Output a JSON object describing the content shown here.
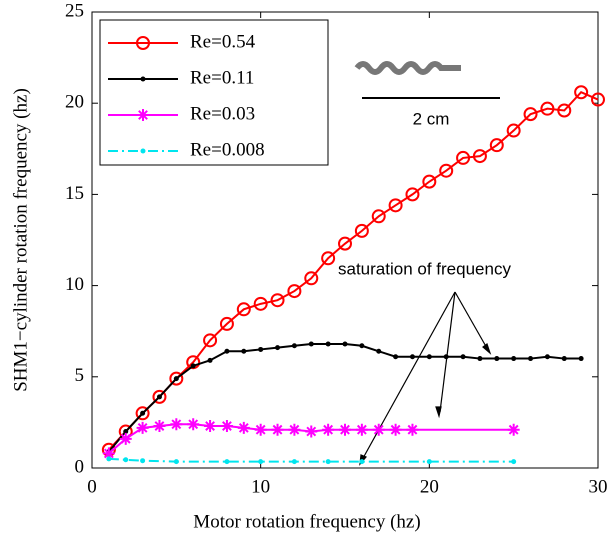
{
  "chart_data": {
    "type": "line",
    "xlabel": "Motor rotation frequency (hz)",
    "ylabel": "SHM1−cylinder rotation frequency (hz)",
    "xlim": [
      0,
      30
    ],
    "ylim": [
      0,
      25
    ],
    "xticks": [
      0,
      10,
      20,
      30
    ],
    "yticks": [
      0,
      5,
      10,
      15,
      20,
      25
    ],
    "legend": "upper left",
    "annotation": "saturation of frequency",
    "scale_label": "2 cm",
    "series": [
      {
        "name": "Re=0.54",
        "color": "#ff0000",
        "marker": "circle",
        "linestyle": "solid",
        "x": [
          1,
          2,
          3,
          4,
          5,
          6,
          7,
          8,
          9,
          10,
          11,
          12,
          13,
          14,
          15,
          16,
          17,
          18,
          19,
          20,
          21,
          22,
          23,
          24,
          25,
          26,
          27,
          28,
          29,
          30
        ],
        "values": [
          1.0,
          2.0,
          3.0,
          3.9,
          4.9,
          5.8,
          7.0,
          7.9,
          8.7,
          9.0,
          9.2,
          9.7,
          10.4,
          11.5,
          12.3,
          13.0,
          13.8,
          14.4,
          15.0,
          15.7,
          16.3,
          17.0,
          17.1,
          17.7,
          18.5,
          19.4,
          19.7,
          19.6,
          20.6,
          20.2
        ]
      },
      {
        "name": "Re=0.11",
        "color": "#000000",
        "marker": "dot",
        "linestyle": "solid",
        "x": [
          1,
          2,
          3,
          4,
          5,
          6,
          7,
          8,
          9,
          10,
          11,
          12,
          13,
          14,
          15,
          16,
          17,
          18,
          19,
          20,
          21,
          22,
          23,
          24,
          25,
          26,
          27,
          28,
          29
        ],
        "values": [
          0.9,
          2.0,
          3.0,
          3.9,
          4.9,
          5.6,
          5.9,
          6.4,
          6.4,
          6.5,
          6.6,
          6.7,
          6.8,
          6.8,
          6.8,
          6.7,
          6.4,
          6.1,
          6.1,
          6.1,
          6.1,
          6.1,
          6.0,
          6.0,
          6.0,
          6.0,
          6.1,
          6.0,
          6.0
        ]
      },
      {
        "name": "Re=0.03",
        "color": "#ff00ff",
        "marker": "star",
        "linestyle": "solid",
        "x": [
          1,
          2,
          3,
          4,
          5,
          6,
          7,
          8,
          9,
          10,
          11,
          12,
          13,
          14,
          15,
          16,
          17,
          18,
          19,
          25
        ],
        "values": [
          0.8,
          1.6,
          2.2,
          2.3,
          2.4,
          2.4,
          2.3,
          2.3,
          2.2,
          2.1,
          2.1,
          2.1,
          2.0,
          2.1,
          2.1,
          2.1,
          2.1,
          2.1,
          2.1,
          2.1
        ]
      },
      {
        "name": "Re=0.008",
        "color": "#00e5ee",
        "marker": "dot",
        "linestyle": "dashdot",
        "x": [
          1,
          2,
          3,
          5,
          8,
          10,
          12,
          14,
          16,
          20,
          25
        ],
        "values": [
          0.5,
          0.45,
          0.4,
          0.35,
          0.35,
          0.35,
          0.35,
          0.35,
          0.35,
          0.35,
          0.35
        ]
      }
    ]
  }
}
